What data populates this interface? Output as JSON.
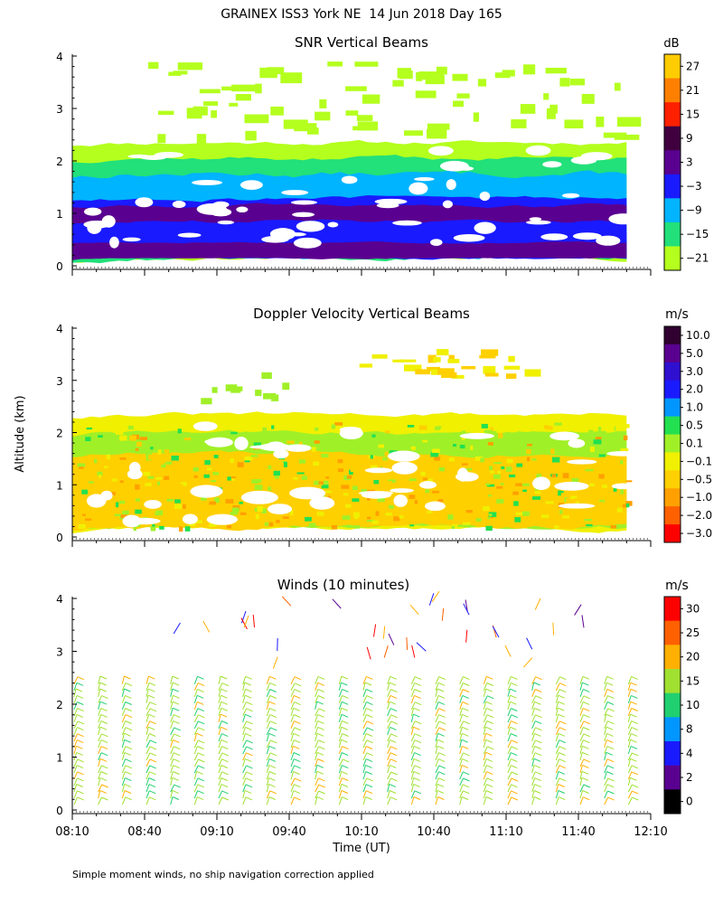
{
  "figure_title": "GRAINEX ISS3 York NE  14 Jun 2018 Day 165",
  "footnote": "Simple moment winds, no ship navigation correction applied",
  "ylabel": "Altitude (km)",
  "xlabel": "Time (UT)",
  "x_tick_labels": [
    "08:10",
    "08:40",
    "09:10",
    "09:40",
    "10:10",
    "10:40",
    "11:10",
    "11:40",
    "12:10"
  ],
  "y_tick_labels": [
    "0",
    "1",
    "2",
    "3",
    "4"
  ],
  "chart_data": [
    {
      "type": "heatmap",
      "title": "SNR Vertical Beams",
      "unit": "dB",
      "xlim": [
        "08:10",
        "12:10"
      ],
      "ylim": [
        0,
        4
      ],
      "colorbar": {
        "labels": [
          "27",
          "21",
          "15",
          "9",
          "3",
          "−3",
          "−9",
          "−15",
          "−21"
        ],
        "colors": [
          "#ffcc00",
          "#ff8000",
          "#ff2000",
          "#400040",
          "#5a0090",
          "#1a1aff",
          "#00b4ff",
          "#22e07a",
          "#b4ff1e"
        ]
      },
      "layers": [
        {
          "start": "08:10",
          "end": "12:00",
          "base_km": 0.15,
          "top_km": 0.6,
          "level": "3 to 9"
        },
        {
          "start": "08:10",
          "end": "12:00",
          "base_km": 0.6,
          "top_km": 1.4,
          "level": "-9 to 3"
        },
        {
          "start": "08:10",
          "end": "12:00",
          "base_km": 1.4,
          "top_km": 2.3,
          "level": "-21 to -9"
        },
        {
          "start": "08:40",
          "end": "11:50",
          "base_km": 2.6,
          "top_km": 3.9,
          "level": "-21 to -15"
        }
      ]
    },
    {
      "type": "heatmap",
      "title": "Doppler Velocity Vertical Beams",
      "unit": "m/s",
      "xlim": [
        "08:10",
        "12:10"
      ],
      "ylim": [
        0,
        4
      ],
      "colorbar": {
        "labels": [
          "10.0",
          "5.0",
          "3.0",
          "2.0",
          "1.0",
          "0.5",
          "0.1",
          "−0.1",
          "−0.5",
          "−1.0",
          "−2.0",
          "−3.0"
        ],
        "colors": [
          "#300030",
          "#5a0090",
          "#3010d0",
          "#1a1aff",
          "#0096ff",
          "#22e050",
          "#a0f028",
          "#f0f000",
          "#ffd000",
          "#ffa000",
          "#ff6000",
          "#ff0000"
        ]
      },
      "layers": [
        {
          "start": "08:10",
          "end": "12:00",
          "base_km": 0.15,
          "top_km": 2.3,
          "level": "-0.5 to 0.5"
        },
        {
          "start": "10:10",
          "end": "11:20",
          "base_km": 3.2,
          "top_km": 3.6,
          "level": "-1.0 to 0.1"
        }
      ]
    },
    {
      "type": "barbs",
      "title": "Winds (10 minutes)",
      "unit": "m/s",
      "xlim": [
        "08:10",
        "12:10"
      ],
      "ylim": [
        0,
        4
      ],
      "colorbar": {
        "labels": [
          "30",
          "25",
          "20",
          "15",
          "10",
          "8",
          "4",
          "2",
          "0"
        ],
        "colors": [
          "#ff0000",
          "#ff6000",
          "#ffb000",
          "#a0e030",
          "#20d070",
          "#0096ff",
          "#1a1aff",
          "#5a0090",
          "#000000"
        ]
      },
      "profiles_every_min": 10,
      "typical_speed_mps": "15-20",
      "profile_top_km": 2.5
    }
  ]
}
